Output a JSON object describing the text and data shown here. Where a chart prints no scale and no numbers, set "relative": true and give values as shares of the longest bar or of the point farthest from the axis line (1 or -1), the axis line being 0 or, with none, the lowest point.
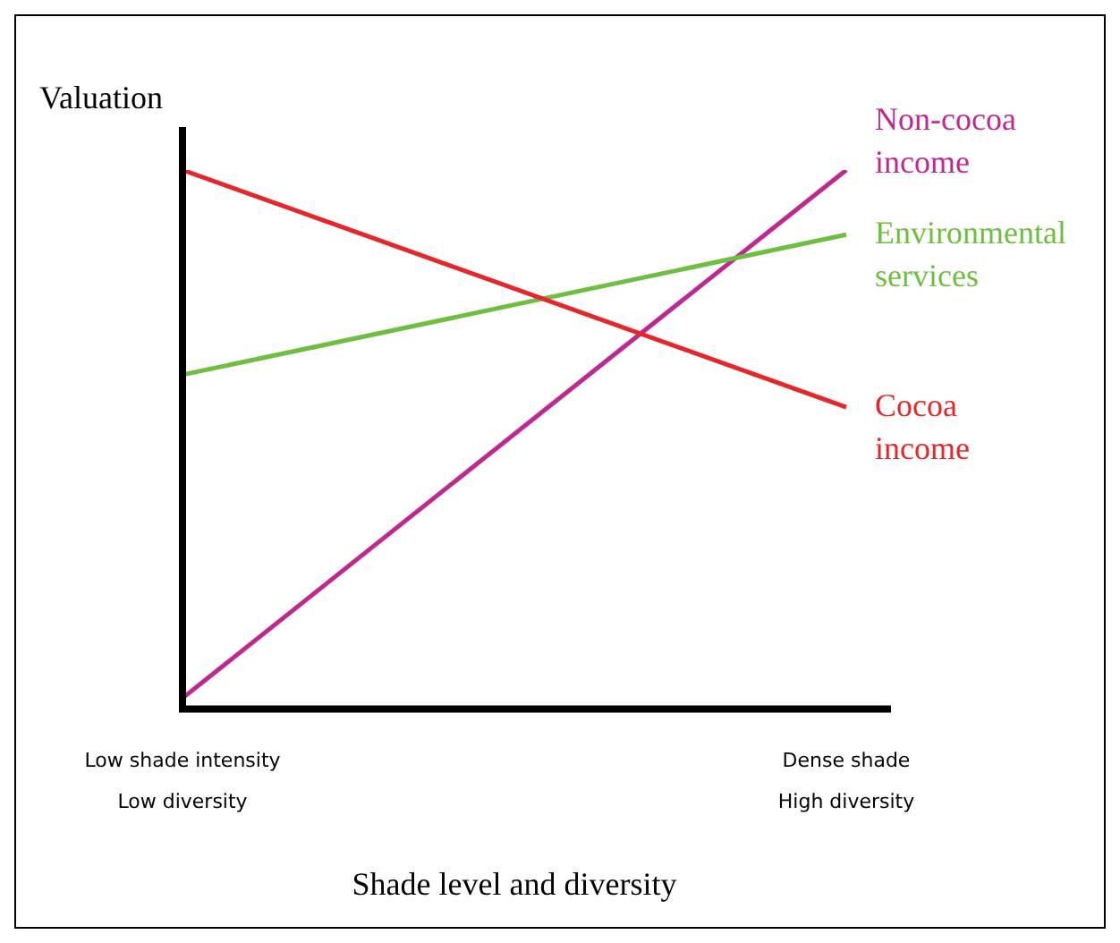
{
  "chart_data": {
    "type": "line",
    "relative": true,
    "ylabel": "Valuation",
    "xlabel": "Shade level and diversity",
    "categories": [
      "Low shade intensity\nLow diversity",
      "Dense shade\nHigh diversity"
    ],
    "series": [
      {
        "name": "Cocoa income",
        "color": "#e8262a",
        "values": [
          1,
          0.56
        ]
      },
      {
        "name": "Environmental services",
        "color": "#6cbf3f",
        "values": [
          0.62,
          0.88
        ]
      },
      {
        "name": "Non-cocoa income",
        "color": "#c0288f",
        "values": [
          0.02,
          1
        ]
      }
    ],
    "legend": false,
    "grid": false,
    "marker": "none",
    "line_style": "solid"
  }
}
